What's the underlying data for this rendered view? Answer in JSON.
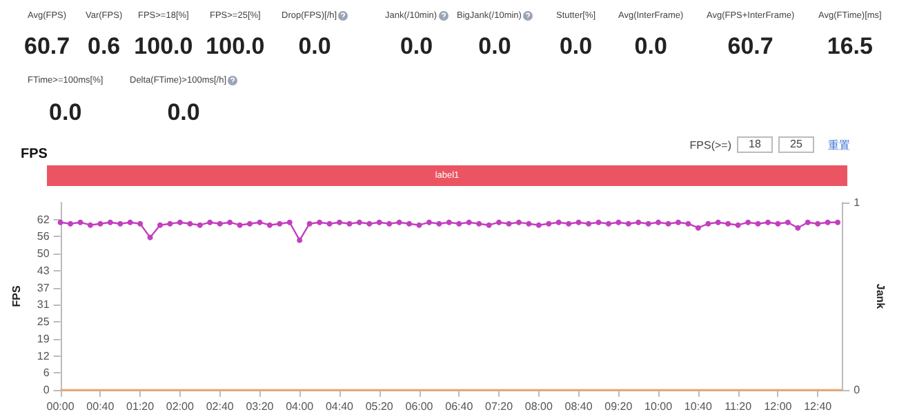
{
  "chart_data": [
    {
      "type": "other",
      "annotations": [
        "Avg(FPS)",
        "60.7",
        "Var(FPS)",
        "0.6",
        "FPS>=18[%]",
        "100.0",
        "FPS>=25[%]",
        "100.0",
        "Drop(FPS)[/h]",
        "0.0",
        "Jank(/10min)",
        "0.0",
        "BigJank(/10min)",
        "0.0",
        "Stutter[%]",
        "0.0",
        "Avg(InterFrame)",
        "0.0",
        "Avg(FPS+InterFrame)",
        "60.7",
        "Avg(FTime)[ms]",
        "16.5",
        "FTime>=100ms[%]",
        "0.0",
        "Delta(FTime)>100ms[/h]",
        "0.0"
      ]
    },
    {
      "type": "line",
      "title": "FPS",
      "ylabel": "FPS",
      "y2label": "Jank",
      "annotations": [
        "FPS(>=)",
        "18",
        "25",
        "重置",
        "label1"
      ],
      "x": [
        0,
        10,
        20,
        30,
        40,
        50,
        60,
        70,
        80,
        90,
        100,
        110,
        120,
        130,
        140,
        150,
        160,
        170,
        180,
        190,
        200,
        210,
        220,
        230,
        240,
        250,
        260,
        270,
        280,
        290,
        300,
        310,
        320,
        330,
        340,
        350,
        360,
        370,
        380,
        390,
        400,
        410,
        420,
        430,
        440,
        450,
        460,
        470,
        480,
        490,
        500,
        510,
        520,
        530,
        540,
        550,
        560,
        570,
        580,
        590,
        600,
        610,
        620,
        630,
        640,
        650,
        660,
        670,
        680,
        690,
        700,
        710,
        720,
        730,
        740,
        750,
        760,
        770,
        780
      ],
      "series": [
        {
          "color": "#c23fbf",
          "values": [
            61,
            60.5,
            61,
            60,
            60.5,
            61,
            60.5,
            61,
            60.5,
            55.5,
            60,
            60.5,
            61,
            60.5,
            60,
            61,
            60.5,
            61,
            60,
            60.5,
            61,
            60,
            60.5,
            61,
            54.5,
            60.5,
            61,
            60.5,
            61,
            60.5,
            61,
            60.5,
            61,
            60.5,
            61,
            60.5,
            60,
            61,
            60.5,
            61,
            60.5,
            61,
            60.5,
            60,
            61,
            60.5,
            61,
            60.5,
            60,
            60.5,
            61,
            60.5,
            61,
            60.5,
            61,
            60.5,
            61,
            60.5,
            61,
            60.5,
            61,
            60.5,
            61,
            60.5,
            59,
            60.5,
            61,
            60.5,
            60,
            61,
            60.5,
            61,
            60.5,
            61,
            59,
            61,
            60.5,
            61,
            61
          ]
        },
        {
          "color": "#f4a261",
          "marker": "none",
          "x": [
            0,
            785
          ],
          "values": [
            0,
            0
          ]
        }
      ],
      "marker": "circle",
      "xlim": [
        0,
        785
      ],
      "xticks": [
        {
          "value": 0,
          "label": "00:00"
        },
        {
          "value": 40,
          "label": "00:40"
        },
        {
          "value": 80,
          "label": "01:20"
        },
        {
          "value": 120,
          "label": "02:00"
        },
        {
          "value": 160,
          "label": "02:40"
        },
        {
          "value": 200,
          "label": "03:20"
        },
        {
          "value": 240,
          "label": "04:00"
        },
        {
          "value": 280,
          "label": "04:40"
        },
        {
          "value": 320,
          "label": "05:20"
        },
        {
          "value": 360,
          "label": "06:00"
        },
        {
          "value": 400,
          "label": "06:40"
        },
        {
          "value": 440,
          "label": "07:20"
        },
        {
          "value": 480,
          "label": "08:00"
        },
        {
          "value": 520,
          "label": "08:40"
        },
        {
          "value": 560,
          "label": "09:20"
        },
        {
          "value": 600,
          "label": "10:00"
        },
        {
          "value": 640,
          "label": "10:40"
        },
        {
          "value": 680,
          "label": "11:20"
        },
        {
          "value": 720,
          "label": "12:00"
        },
        {
          "value": 760,
          "label": "12:40"
        }
      ],
      "ylim": [
        0,
        68.2
      ],
      "yticks": [
        0,
        {
          "value": 6.2,
          "label": "6"
        },
        {
          "value": 12.4,
          "label": "12"
        },
        {
          "value": 18.6,
          "label": "19"
        },
        {
          "value": 24.8,
          "label": "25"
        },
        31,
        {
          "value": 37.2,
          "label": "37"
        },
        {
          "value": 43.4,
          "label": "43"
        },
        {
          "value": 49.6,
          "label": "50"
        },
        {
          "value": 55.8,
          "label": "56"
        },
        62
      ],
      "y2lim": [
        0,
        1
      ],
      "y2ticks": [
        0,
        1
      ]
    }
  ]
}
